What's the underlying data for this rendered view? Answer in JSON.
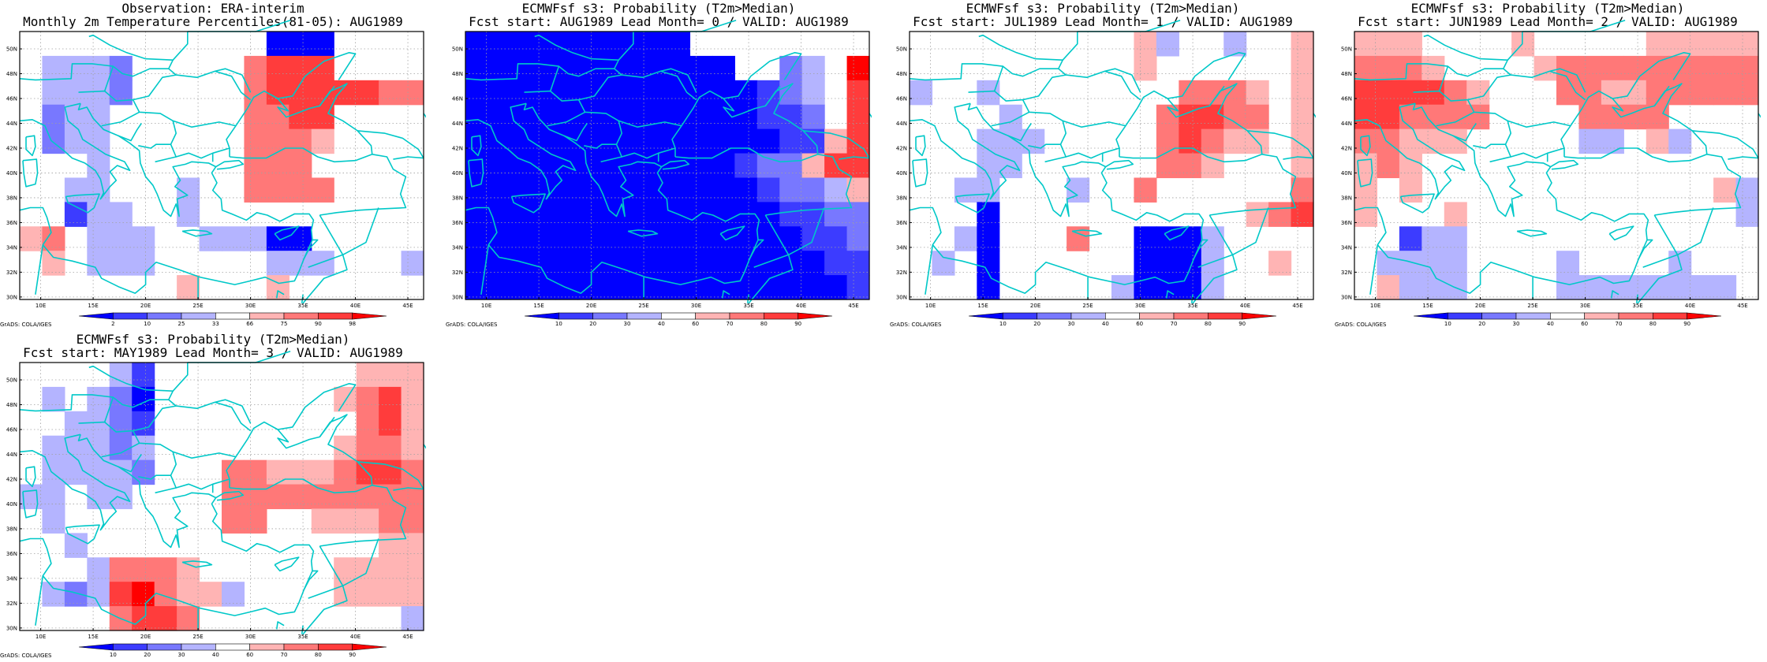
{
  "figure": {
    "panels": [
      {
        "title1": "Observation: ERA-interim",
        "title2": "Monthly 2m Temperature Percentiles(81-05): AUG1989",
        "colorbar_labels": [
          "2",
          "10",
          "25",
          "33",
          "66",
          "75",
          "90",
          "98"
        ],
        "colors": [
          "#0000ff",
          "#3c3cff",
          "#7878ff",
          "#b4b4ff",
          "#ffffff",
          "#ffb4b4",
          "#ff7878",
          "#ff3c3c",
          "#ff0000"
        ],
        "grid": [
          [
            0,
            0,
            0,
            0,
            0,
            0,
            0,
            0,
            0,
            0,
            0,
            0,
            0,
            0,
            0,
            0,
            0,
            0
          ],
          [
            0,
            0,
            0,
            0,
            0,
            0,
            0,
            0,
            0,
            0,
            0,
            0,
            0,
            0,
            0,
            0,
            0,
            0
          ],
          [
            0,
            0,
            0,
            0,
            0,
            0,
            0,
            0,
            0,
            0,
            0,
            0,
            0,
            0,
            0,
            0,
            0,
            0
          ],
          [
            0,
            0,
            0,
            0,
            0,
            0,
            0,
            0,
            0,
            0,
            0,
            0,
            0,
            0,
            0,
            0,
            0,
            0
          ],
          [
            0,
            0,
            0,
            0,
            0,
            0,
            0,
            0,
            0,
            0,
            0,
            0,
            0,
            0,
            0,
            0,
            0,
            0
          ],
          [
            0,
            0,
            0,
            0,
            0,
            0,
            0,
            0,
            0,
            0,
            0,
            0,
            0,
            0,
            0,
            0,
            0,
            0
          ],
          [
            0,
            0,
            0,
            0,
            0,
            0,
            0,
            0,
            0,
            0,
            0,
            0,
            0,
            0,
            0,
            0,
            0,
            0
          ],
          [
            0,
            0,
            0,
            0,
            0,
            0,
            0,
            0,
            0,
            0,
            0,
            0,
            0,
            0,
            0,
            0,
            0,
            0
          ],
          [
            0,
            0,
            0,
            0,
            0,
            0,
            0,
            0,
            0,
            0,
            0,
            0,
            0,
            0,
            0,
            0,
            0,
            0
          ],
          [
            0,
            0,
            0,
            0,
            0,
            0,
            0,
            0,
            0,
            0,
            0,
            0,
            0,
            0,
            0,
            0,
            0,
            0
          ],
          [
            0,
            0,
            0,
            0,
            0,
            0,
            0,
            0,
            0,
            0,
            0,
            0,
            0,
            0,
            0,
            0,
            0,
            0
          ]
        ]
      },
      {
        "title1": "ECMWFsf s3: Probability (T2m>Median)",
        "title2": "Fcst start: AUG1989  Lead Month= 0 / VALID: AUG1989",
        "colorbar_labels": [
          "10",
          "20",
          "30",
          "40",
          "60",
          "70",
          "80",
          "90"
        ],
        "colors": [
          "#0000ff",
          "#3c3cff",
          "#7878ff",
          "#b4b4ff",
          "#ffffff",
          "#ffb4b4",
          "#ff7878",
          "#ff3c3c",
          "#ff0000"
        ],
        "grid": [
          [
            0,
            0,
            0,
            0,
            0,
            0,
            0,
            0,
            0,
            0,
            0,
            0,
            0,
            0,
            0,
            0,
            0,
            0
          ],
          [
            0,
            0,
            0,
            0,
            0,
            0,
            0,
            0,
            0,
            0,
            0,
            0,
            0,
            0,
            0,
            0,
            0,
            0
          ],
          [
            0,
            0,
            0,
            0,
            0,
            0,
            0,
            0,
            0,
            0,
            0,
            0,
            0,
            0,
            0,
            0,
            0,
            0
          ],
          [
            0,
            0,
            0,
            0,
            0,
            0,
            0,
            0,
            0,
            0,
            0,
            0,
            0,
            0,
            0,
            0,
            0,
            0
          ],
          [
            0,
            0,
            0,
            0,
            0,
            0,
            0,
            0,
            0,
            0,
            0,
            0,
            0,
            0,
            0,
            0,
            0,
            0
          ],
          [
            0,
            0,
            0,
            0,
            0,
            0,
            0,
            0,
            0,
            0,
            0,
            0,
            0,
            0,
            0,
            0,
            0,
            0
          ],
          [
            0,
            0,
            0,
            0,
            0,
            0,
            0,
            0,
            0,
            0,
            0,
            0,
            0,
            0,
            0,
            0,
            0,
            0
          ],
          [
            0,
            0,
            0,
            0,
            0,
            0,
            0,
            0,
            0,
            0,
            0,
            0,
            0,
            0,
            0,
            0,
            0,
            0
          ],
          [
            0,
            0,
            0,
            0,
            0,
            0,
            0,
            0,
            0,
            0,
            0,
            0,
            0,
            0,
            0,
            0,
            0,
            0
          ],
          [
            0,
            0,
            0,
            0,
            0,
            0,
            0,
            0,
            0,
            0,
            0,
            0,
            0,
            0,
            0,
            0,
            0,
            0
          ],
          [
            0,
            0,
            0,
            0,
            0,
            0,
            0,
            0,
            0,
            0,
            0,
            0,
            0,
            0,
            0,
            0,
            0,
            0
          ]
        ]
      },
      {
        "title1": "ECMWFsf s3: Probability (T2m>Median)",
        "title2": "Fcst start: JUL1989  Lead Month= 1 / VALID: AUG1989",
        "colorbar_labels": [
          "10",
          "20",
          "30",
          "40",
          "60",
          "70",
          "80",
          "90"
        ],
        "colors": [
          "#0000ff",
          "#3c3cff",
          "#7878ff",
          "#b4b4ff",
          "#ffffff",
          "#ffb4b4",
          "#ff7878",
          "#ff3c3c",
          "#ff0000"
        ],
        "grid": [
          [
            0,
            0,
            0,
            0,
            0,
            0,
            0,
            0,
            0,
            0,
            0,
            0,
            0,
            0,
            0,
            0,
            0,
            0
          ],
          [
            0,
            0,
            0,
            0,
            0,
            0,
            0,
            0,
            0,
            0,
            0,
            0,
            0,
            0,
            0,
            0,
            0,
            0
          ],
          [
            0,
            0,
            0,
            0,
            0,
            0,
            0,
            0,
            0,
            0,
            0,
            0,
            0,
            0,
            0,
            0,
            0,
            0
          ],
          [
            0,
            0,
            0,
            0,
            0,
            0,
            0,
            0,
            0,
            0,
            0,
            0,
            0,
            0,
            0,
            0,
            0,
            0
          ],
          [
            0,
            0,
            0,
            0,
            0,
            0,
            0,
            0,
            0,
            0,
            0,
            0,
            0,
            0,
            0,
            0,
            0,
            0
          ],
          [
            0,
            0,
            0,
            0,
            0,
            0,
            0,
            0,
            0,
            0,
            0,
            0,
            0,
            0,
            0,
            0,
            0,
            0
          ],
          [
            0,
            0,
            0,
            0,
            0,
            0,
            0,
            0,
            0,
            0,
            0,
            0,
            0,
            0,
            0,
            0,
            0,
            0
          ],
          [
            0,
            0,
            0,
            0,
            0,
            0,
            0,
            0,
            0,
            0,
            0,
            0,
            0,
            0,
            0,
            0,
            0,
            0
          ],
          [
            0,
            0,
            0,
            0,
            0,
            0,
            0,
            0,
            0,
            0,
            0,
            0,
            0,
            0,
            0,
            0,
            0,
            0
          ],
          [
            0,
            0,
            0,
            0,
            0,
            0,
            0,
            0,
            0,
            0,
            0,
            0,
            0,
            0,
            0,
            0,
            0,
            0
          ],
          [
            0,
            0,
            0,
            0,
            0,
            0,
            0,
            0,
            0,
            0,
            0,
            0,
            0,
            0,
            0,
            0,
            0,
            0
          ]
        ]
      },
      {
        "title1": "ECMWFsf s3: Probability (T2m>Median)",
        "title2": "Fcst start: JUN1989  Lead Month= 2 / VALID: AUG1989",
        "colorbar_labels": [
          "10",
          "20",
          "30",
          "40",
          "60",
          "70",
          "80",
          "90"
        ],
        "colors": [
          "#0000ff",
          "#3c3cff",
          "#7878ff",
          "#b4b4ff",
          "#ffffff",
          "#ffb4b4",
          "#ff7878",
          "#ff3c3c",
          "#ff0000"
        ],
        "grid": [
          [
            0,
            0,
            0,
            0,
            0,
            0,
            0,
            0,
            0,
            0,
            0,
            0,
            0,
            0,
            0,
            0,
            0,
            0
          ],
          [
            0,
            0,
            0,
            0,
            0,
            0,
            0,
            0,
            0,
            0,
            0,
            0,
            0,
            0,
            0,
            0,
            0,
            0
          ],
          [
            0,
            0,
            0,
            0,
            0,
            0,
            0,
            0,
            0,
            0,
            0,
            0,
            0,
            0,
            0,
            0,
            0,
            0
          ],
          [
            0,
            0,
            0,
            0,
            0,
            0,
            0,
            0,
            0,
            0,
            0,
            0,
            0,
            0,
            0,
            0,
            0,
            0
          ],
          [
            0,
            0,
            0,
            0,
            0,
            0,
            0,
            0,
            0,
            0,
            0,
            0,
            0,
            0,
            0,
            0,
            0,
            0
          ],
          [
            0,
            0,
            0,
            0,
            0,
            0,
            0,
            0,
            0,
            0,
            0,
            0,
            0,
            0,
            0,
            0,
            0,
            0
          ],
          [
            0,
            0,
            0,
            0,
            0,
            0,
            0,
            0,
            0,
            0,
            0,
            0,
            0,
            0,
            0,
            0,
            0,
            0
          ],
          [
            0,
            0,
            0,
            0,
            0,
            0,
            0,
            0,
            0,
            0,
            0,
            0,
            0,
            0,
            0,
            0,
            0,
            0
          ],
          [
            0,
            0,
            0,
            0,
            0,
            0,
            0,
            0,
            0,
            0,
            0,
            0,
            0,
            0,
            0,
            0,
            0,
            0
          ],
          [
            0,
            0,
            0,
            0,
            0,
            0,
            0,
            0,
            0,
            0,
            0,
            0,
            0,
            0,
            0,
            0,
            0,
            0
          ],
          [
            0,
            0,
            0,
            0,
            0,
            0,
            0,
            0,
            0,
            0,
            0,
            0,
            0,
            0,
            0,
            0,
            0,
            0
          ]
        ]
      },
      {
        "title1": "ECMWFsf s3: Probability (T2m>Median)",
        "title2": "Fcst start: MAY1989  Lead Month= 3 / VALID: AUG1989",
        "colorbar_labels": [
          "10",
          "20",
          "30",
          "40",
          "60",
          "70",
          "80",
          "90"
        ],
        "colors": [
          "#0000ff",
          "#3c3cff",
          "#7878ff",
          "#b4b4ff",
          "#ffffff",
          "#ffb4b4",
          "#ff7878",
          "#ff3c3c",
          "#ff0000"
        ],
        "grid": [
          [
            0,
            0,
            0,
            0,
            0,
            0,
            0,
            0,
            0,
            0,
            0,
            0,
            0,
            0,
            0,
            0,
            0,
            0
          ],
          [
            0,
            0,
            0,
            0,
            0,
            0,
            0,
            0,
            0,
            0,
            0,
            0,
            0,
            0,
            0,
            0,
            0,
            0
          ],
          [
            0,
            0,
            0,
            0,
            0,
            0,
            0,
            0,
            0,
            0,
            0,
            0,
            0,
            0,
            0,
            0,
            0,
            0
          ],
          [
            0,
            0,
            0,
            0,
            0,
            0,
            0,
            0,
            0,
            0,
            0,
            0,
            0,
            0,
            0,
            0,
            0,
            0
          ],
          [
            0,
            0,
            0,
            0,
            0,
            0,
            0,
            0,
            0,
            0,
            0,
            0,
            0,
            0,
            0,
            0,
            0,
            0
          ],
          [
            0,
            0,
            0,
            0,
            0,
            0,
            0,
            0,
            0,
            0,
            0,
            0,
            0,
            0,
            0,
            0,
            0,
            0
          ],
          [
            0,
            0,
            0,
            0,
            0,
            0,
            0,
            0,
            0,
            0,
            0,
            0,
            0,
            0,
            0,
            0,
            0,
            0
          ],
          [
            0,
            0,
            0,
            0,
            0,
            0,
            0,
            0,
            0,
            0,
            0,
            0,
            0,
            0,
            0,
            0,
            0,
            0
          ],
          [
            0,
            0,
            0,
            0,
            0,
            0,
            0,
            0,
            0,
            0,
            0,
            0,
            0,
            0,
            0,
            0,
            0,
            0
          ],
          [
            0,
            0,
            0,
            0,
            0,
            0,
            0,
            0,
            0,
            0,
            0,
            0,
            0,
            0,
            0,
            0,
            0,
            0
          ],
          [
            0,
            0,
            0,
            0,
            0,
            0,
            0,
            0,
            0,
            0,
            0,
            0,
            0,
            0,
            0,
            0,
            0,
            0
          ]
        ]
      }
    ],
    "lat_labels": [
      "30N",
      "32N",
      "34N",
      "36N",
      "38N",
      "40N",
      "42N",
      "44N",
      "46N",
      "48N",
      "50N"
    ],
    "lon_labels": [
      "10E",
      "15E",
      "20E",
      "25E",
      "30E",
      "35E",
      "40E",
      "45E"
    ],
    "credit": "GrADS: COLA/IGES",
    "coast_color": "#00c8c8"
  }
}
